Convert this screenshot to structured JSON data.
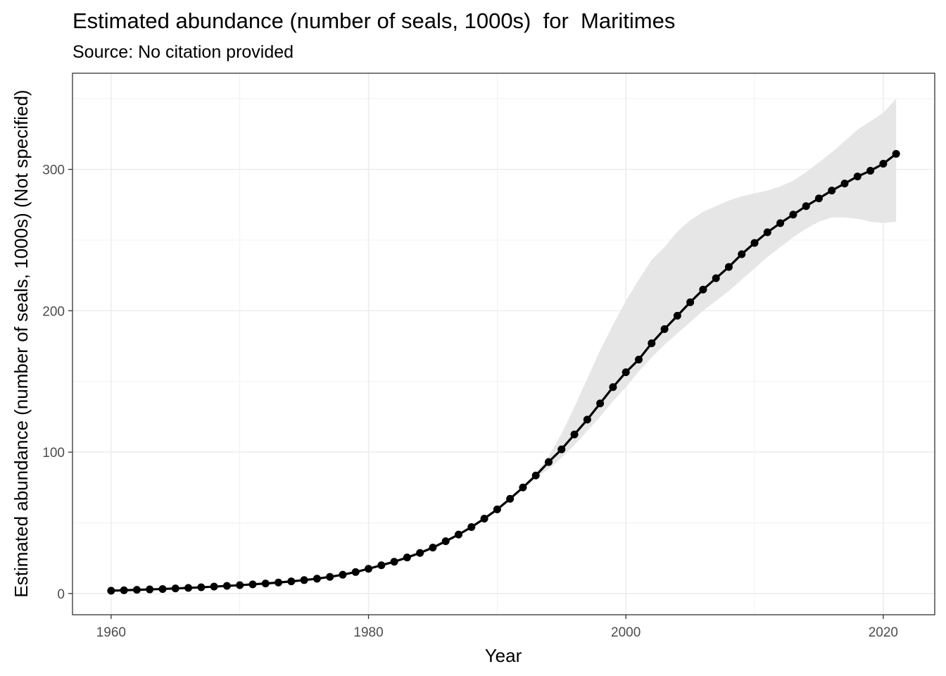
{
  "chart_data": {
    "type": "line",
    "title": "Estimated abundance (number of seals, 1000s)  for  Maritimes",
    "subtitle": "Source: No citation provided",
    "xlabel": "Year",
    "ylabel": "Estimated abundance (number of seals, 1000s) (Not specified)",
    "xlim": [
      1957,
      2024
    ],
    "ylim": [
      -15,
      368
    ],
    "x_ticks": [
      1960,
      1980,
      2000,
      2020
    ],
    "y_ticks": [
      0,
      100,
      200,
      300
    ],
    "grid": true,
    "series": [
      {
        "x": [
          1960,
          1961,
          1962,
          1963,
          1964,
          1965,
          1966,
          1967,
          1968,
          1969,
          1970,
          1971,
          1972,
          1973,
          1974,
          1975,
          1976,
          1977,
          1978,
          1979,
          1980,
          1981,
          1982,
          1983,
          1984,
          1985,
          1986,
          1987,
          1988,
          1989,
          1990,
          1991,
          1992,
          1993,
          1994,
          1995,
          1996,
          1997,
          1998,
          1999,
          2000,
          2001,
          2002,
          2003,
          2004,
          2005,
          2006,
          2007,
          2008,
          2009,
          2010,
          2011,
          2012,
          2013,
          2014,
          2015,
          2016,
          2017,
          2018,
          2019,
          2020,
          2021
        ],
        "y": [
          2,
          2.3,
          2.6,
          2.9,
          3.2,
          3.6,
          4,
          4.4,
          4.9,
          5.4,
          5.9,
          6.5,
          7.1,
          7.8,
          8.6,
          9.5,
          10.5,
          11.8,
          13.3,
          15.2,
          17.5,
          20,
          22.5,
          25.5,
          28.7,
          32.5,
          37,
          41.7,
          47,
          53,
          59.5,
          67,
          75,
          83.5,
          93,
          102,
          112.5,
          123,
          134.5,
          146,
          156.5,
          165.5,
          177,
          187,
          196.5,
          206,
          215,
          223,
          231,
          240,
          248,
          255.5,
          262,
          268,
          274,
          279.5,
          285,
          290,
          295,
          299,
          304,
          311
        ],
        "lower": [
          2,
          2.3,
          2.6,
          2.9,
          3.2,
          3.6,
          4,
          4.4,
          4.9,
          5.4,
          5.9,
          6.5,
          7.1,
          7.8,
          8.6,
          9.5,
          10.5,
          11.8,
          13.3,
          15.2,
          17.5,
          20,
          22.5,
          25.5,
          28.7,
          32.5,
          37,
          41.7,
          47,
          53,
          59.5,
          67,
          75,
          82,
          88,
          96,
          105,
          115,
          125,
          136,
          146,
          157,
          167,
          176,
          184,
          192,
          200,
          207,
          214,
          222,
          230,
          238,
          245,
          252,
          258,
          263,
          266,
          266,
          265,
          263,
          262,
          263
        ],
        "upper": [
          2,
          2.3,
          2.6,
          2.9,
          3.2,
          3.6,
          4,
          4.4,
          4.9,
          5.4,
          5.9,
          6.5,
          7.1,
          7.8,
          8.6,
          9.5,
          10.5,
          11.8,
          13.3,
          15.2,
          17.5,
          20,
          22.5,
          25.5,
          28.7,
          32.5,
          37,
          41.7,
          47,
          53,
          59.5,
          67,
          75,
          85,
          97,
          113,
          132,
          152,
          172,
          190,
          207,
          222,
          236,
          245,
          256,
          264,
          270,
          274,
          278,
          281,
          283,
          285,
          288,
          292,
          298,
          305,
          312,
          320,
          328,
          334,
          340,
          350
        ]
      }
    ],
    "colors": {
      "line": "#000000",
      "ribbon": "#e6e6e6",
      "grid": "#ebebeb",
      "panel_border": "#333333"
    }
  }
}
